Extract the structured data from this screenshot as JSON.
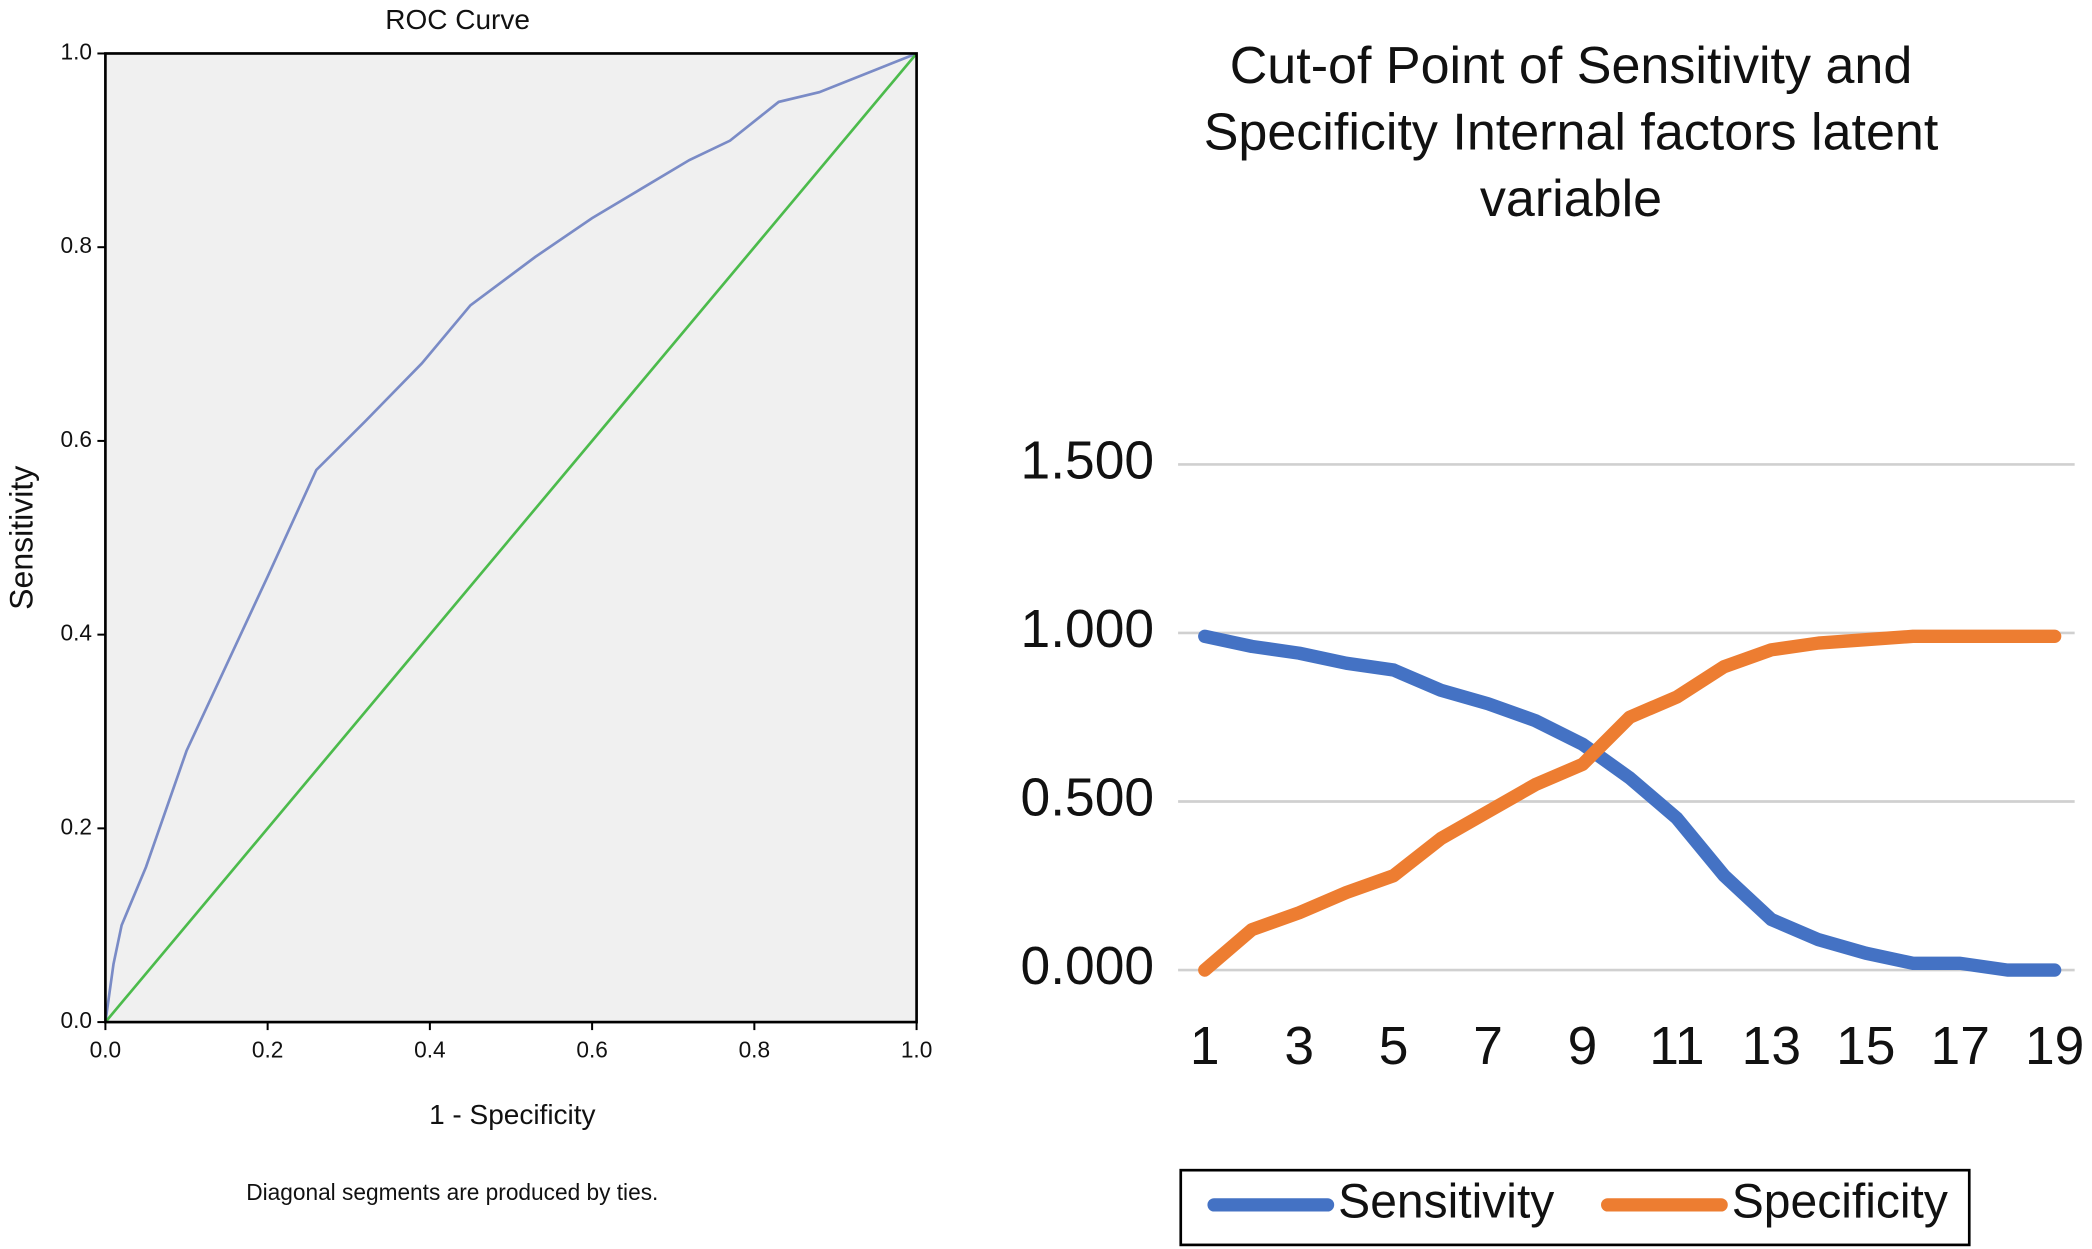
{
  "chart_data": [
    {
      "type": "line",
      "title": "ROC Curve",
      "x_label": "1 - Specificity",
      "y_label": "Sensitivity",
      "note": "Diagonal segments are produced by ties.",
      "xlim": [
        0,
        1
      ],
      "ylim": [
        0,
        1
      ],
      "xticks": [
        {
          "value": 0,
          "label": "0.0"
        },
        0.2,
        0.4,
        0.6,
        0.8,
        {
          "value": 1,
          "label": "1.0"
        }
      ],
      "yticks": [
        {
          "value": 0,
          "label": "0.0"
        },
        0.2,
        0.4,
        0.6,
        0.8,
        {
          "value": 1,
          "label": "1.0"
        }
      ],
      "grid": false,
      "background": "#f0f0f0",
      "series": [
        {
          "color": "#7a8bc6",
          "x": [
            0,
            0.01,
            0.02,
            0.05,
            0.1,
            0.15,
            0.2,
            0.26,
            0.32,
            0.39,
            0.45,
            0.53,
            0.6,
            0.66,
            0.72,
            0.77,
            0.83,
            0.88,
            0.94,
            1
          ],
          "values": [
            0,
            0.06,
            0.1,
            0.16,
            0.28,
            0.37,
            0.46,
            0.57,
            0.62,
            0.68,
            0.74,
            0.79,
            0.83,
            0.86,
            0.89,
            0.91,
            0.95,
            0.96,
            0.98,
            1
          ]
        },
        {
          "color": "#4cbb4c",
          "x": [
            0,
            1
          ],
          "values": [
            0,
            1
          ]
        }
      ]
    },
    {
      "type": "line",
      "title": "Cut-of Point of Sensitivity and Specificity Internal factors latent variable",
      "categories": [
        "1",
        null,
        "3",
        null,
        "5",
        null,
        "7",
        null,
        "9",
        null,
        "11",
        null,
        "13",
        null,
        "15",
        null,
        "17",
        null,
        "19"
      ],
      "ylim": [
        0,
        1.5
      ],
      "yticks": [
        {
          "value": 0,
          "label": "0.000"
        },
        {
          "value": 0.5,
          "label": "0.500"
        },
        {
          "value": 1,
          "label": "1.000"
        },
        {
          "value": 1.5,
          "label": "1.500"
        }
      ],
      "grid": true,
      "legend": "bottom",
      "series": [
        {
          "name": "Sensitivity",
          "color": "#4472c4",
          "values": [
            0.99,
            0.96,
            0.94,
            0.91,
            0.89,
            0.83,
            0.79,
            0.74,
            0.67,
            0.57,
            0.45,
            0.28,
            0.15,
            0.09,
            0.05,
            0.02,
            0.02,
            0,
            0
          ]
        },
        {
          "name": "Specificity",
          "color": "#ed7d31",
          "values": [
            0,
            0.12,
            0.17,
            0.23,
            0.28,
            0.39,
            0.47,
            0.55,
            0.61,
            0.75,
            0.81,
            0.9,
            0.95,
            0.97,
            0.98,
            0.99,
            0.99,
            0.99,
            0.99
          ]
        }
      ]
    }
  ]
}
